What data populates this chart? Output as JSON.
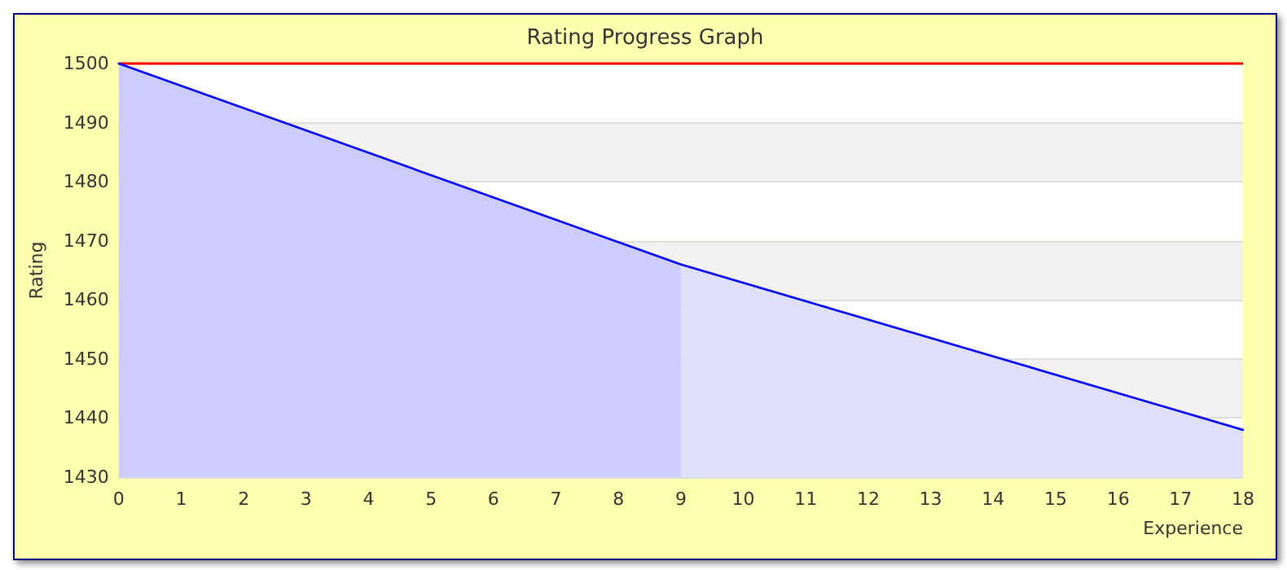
{
  "chart_data": {
    "type": "area",
    "title": "Rating Progress Graph",
    "xlabel": "Experience",
    "ylabel": "Rating",
    "xlim": [
      0,
      18
    ],
    "xticks": [
      0,
      1,
      2,
      3,
      4,
      5,
      6,
      7,
      8,
      9,
      10,
      11,
      12,
      13,
      14,
      15,
      16,
      17,
      18
    ],
    "ylim": [
      1430,
      1500
    ],
    "yticks": [
      1430,
      1440,
      1450,
      1460,
      1470,
      1480,
      1490,
      1500
    ],
    "grid": "y",
    "marker": "none",
    "line_style": "solid",
    "series": [
      {
        "color": "#ccccff",
        "x": [
          0,
          9
        ],
        "values": [
          1500,
          1466
        ]
      },
      {
        "color": "#e0e0fb",
        "x": [
          9,
          18
        ],
        "values": [
          1466,
          1438
        ]
      },
      {
        "type": "line",
        "color": "#0000ff",
        "x": [
          0,
          9,
          18
        ],
        "values": [
          1500,
          1466,
          1438
        ]
      }
    ],
    "ref_lines": [
      {
        "axis": "y",
        "value": 1500,
        "color": "#ff0000"
      }
    ]
  }
}
